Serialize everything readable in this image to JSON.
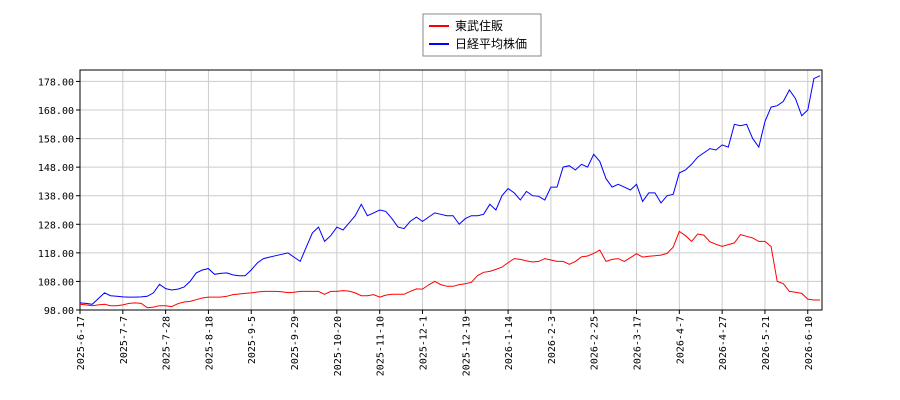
{
  "chart_data": {
    "type": "line",
    "categories": [
      "2025-6-17",
      null,
      null,
      null,
      null,
      null,
      null,
      "2025-7-7",
      null,
      null,
      null,
      null,
      null,
      null,
      "2025-7-28",
      null,
      null,
      null,
      null,
      null,
      null,
      "2025-8-18",
      null,
      null,
      null,
      null,
      null,
      null,
      "2025-9-5",
      null,
      null,
      null,
      null,
      null,
      null,
      "2025-9-29",
      null,
      null,
      null,
      null,
      null,
      null,
      "2025-10-20",
      null,
      null,
      null,
      null,
      null,
      null,
      "2025-11-10",
      null,
      null,
      null,
      null,
      null,
      null,
      "2025-12-1",
      null,
      null,
      null,
      null,
      null,
      null,
      "2025-12-19",
      null,
      null,
      null,
      null,
      null,
      null,
      "2026-1-14",
      null,
      null,
      null,
      null,
      null,
      null,
      "2026-2-3",
      null,
      null,
      null,
      null,
      null,
      null,
      "2026-2-25",
      null,
      null,
      null,
      null,
      null,
      null,
      "2026-3-17",
      null,
      null,
      null,
      null,
      null,
      null,
      "2026-4-7",
      null,
      null,
      null,
      null,
      null,
      null,
      "2026-4-27",
      null,
      null,
      null,
      null,
      null,
      null,
      "2026-5-21",
      null,
      null,
      null,
      null,
      null,
      null,
      "2026-6-10",
      null,
      null
    ],
    "series": [
      {
        "name": "東武住販",
        "color": "#ff0000",
        "values": [
          100,
          99.8,
          99.5,
          99.8,
          100,
          99.5,
          99.5,
          99.8,
          100.3,
          100.5,
          100.3,
          98.8,
          99,
          99.5,
          99.5,
          99.2,
          100.2,
          100.8,
          101,
          101.6,
          102.2,
          102.5,
          102.5,
          102.5,
          102.8,
          103.4,
          103.6,
          103.8,
          104,
          104.3,
          104.5,
          104.5,
          104.5,
          104.4,
          104.1,
          104.2,
          104.5,
          104.5,
          104.5,
          104.5,
          103.5,
          104.5,
          104.5,
          104.8,
          104.6,
          104,
          103,
          103,
          103.4,
          102.5,
          103.2,
          103.5,
          103.5,
          103.5,
          104.5,
          105.4,
          105.3,
          106.8,
          108,
          106.9,
          106.3,
          106.3,
          106.9,
          107.2,
          107.7,
          110,
          111.2,
          111.5,
          112.2,
          113,
          114.6,
          116,
          115.7,
          115.2,
          114.8,
          115,
          116,
          115.5,
          115,
          115,
          114,
          115,
          116.6,
          116.9,
          117.8,
          119,
          115,
          115.7,
          116,
          115,
          116.3,
          117.7,
          116.5,
          116.8,
          117,
          117.2,
          117.8,
          120,
          125.5,
          124,
          122,
          124.6,
          124.2,
          121.9,
          121,
          120.3,
          120.9,
          121.5,
          124.4,
          123.8,
          123.2,
          122,
          122,
          120.2,
          108,
          107.2,
          104.5,
          104.2,
          103.8,
          101.8,
          101.5,
          101.5
        ]
      },
      {
        "name": "日経平均株価",
        "color": "#0000ff",
        "values": [
          100.5,
          100.3,
          100,
          102,
          104,
          103,
          102.8,
          102.6,
          102.5,
          102.5,
          102.6,
          102.8,
          104,
          107,
          105.5,
          105,
          105.3,
          106,
          108,
          111,
          112,
          112.5,
          110.5,
          110.8,
          111,
          110.3,
          110,
          110,
          112,
          114.5,
          116,
          116.5,
          117,
          117.5,
          118,
          116.5,
          115,
          120,
          125,
          127,
          122,
          124,
          127,
          126,
          128.5,
          131,
          135,
          131,
          132,
          133,
          132.5,
          130,
          127,
          126.5,
          129,
          130.5,
          129,
          130.5,
          132,
          131.5,
          131,
          131,
          128,
          130,
          131,
          131,
          131.5,
          135,
          133,
          138,
          140.5,
          139,
          136.5,
          139.5,
          138,
          137.8,
          136.5,
          141,
          141,
          148,
          148.5,
          147,
          149,
          148,
          152.5,
          150,
          144,
          141,
          142,
          141,
          140,
          142,
          136,
          139,
          139,
          135.5,
          138,
          138.5,
          146,
          147,
          149,
          151.5,
          153,
          154.5,
          154,
          155.8,
          155,
          163,
          162.5,
          163,
          158,
          155,
          164,
          169,
          169.5,
          171,
          175,
          172,
          166,
          168,
          179,
          180
        ]
      }
    ],
    "ylim": [
      98,
      182
    ],
    "yticks": [
      {
        "value": 98,
        "label": "98.00"
      },
      {
        "value": 108,
        "label": "108.00"
      },
      {
        "value": 118,
        "label": "118.00"
      },
      {
        "value": 128,
        "label": "128.00"
      },
      {
        "value": 138,
        "label": "138.00"
      },
      {
        "value": 148,
        "label": "148.00"
      },
      {
        "value": 158,
        "label": "158.00"
      },
      {
        "value": 168,
        "label": "168.00"
      },
      {
        "value": 178,
        "label": "178.00"
      }
    ],
    "grid": true,
    "legend": "top"
  }
}
